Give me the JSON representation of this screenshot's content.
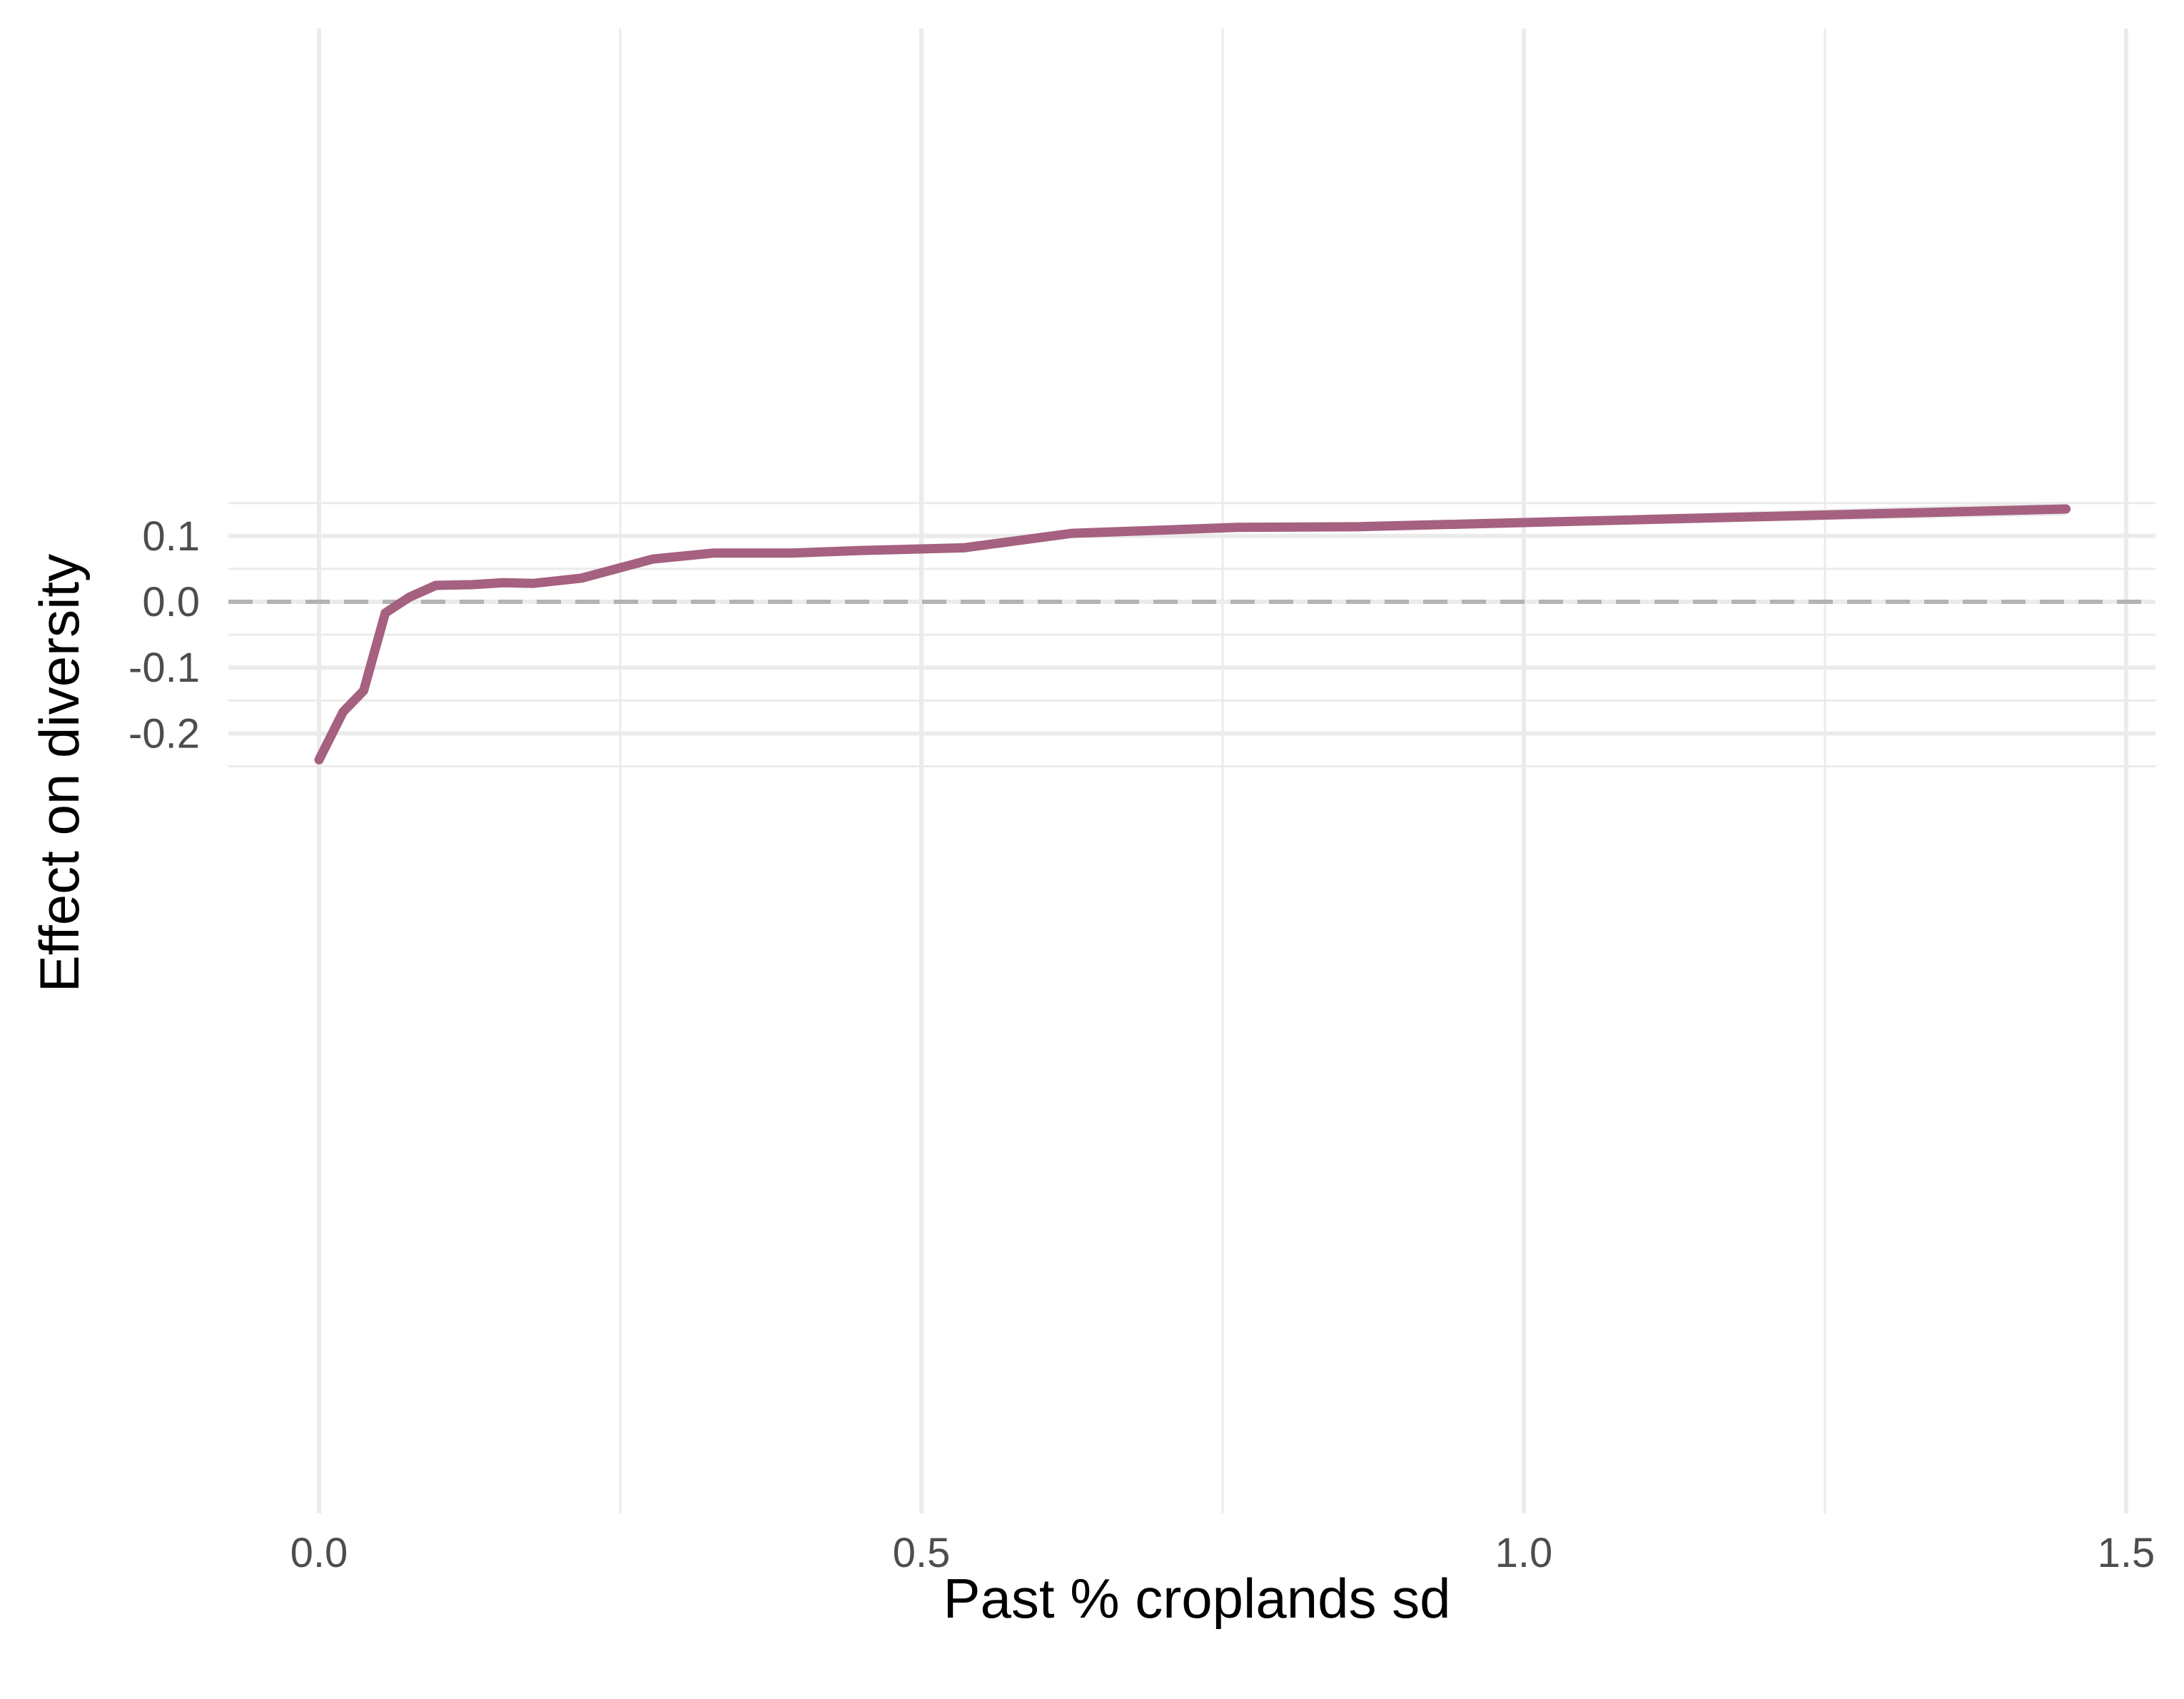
{
  "chart_data": {
    "type": "line",
    "title": "",
    "xlabel": "Past % croplands sd",
    "ylabel": "Effect on diversity",
    "xlim": [
      -0.15,
      1.53
    ],
    "ylim": [
      -0.275,
      0.16
    ],
    "x_ticks": [
      0.0,
      0.5,
      1.0,
      1.5
    ],
    "x_tick_labels": [
      "0.0",
      "0.5",
      "1.0",
      "1.5"
    ],
    "y_ticks": [
      -0.2,
      -0.1,
      0.0,
      0.1
    ],
    "y_tick_labels": [
      "-0.2",
      "-0.1",
      "0.0",
      "0.1"
    ],
    "grid": true,
    "reference_line": {
      "y": 0.0,
      "style": "dashed",
      "color": "#b3b3b3"
    },
    "series": [
      {
        "color": "#a5617f",
        "band_color": "#ebebeb",
        "points": [
          {
            "x": 0.0,
            "y": -0.24,
            "lo": -0.258,
            "hi": -0.226
          },
          {
            "x": 0.02,
            "y": -0.167,
            "lo": -0.172,
            "hi": -0.162
          },
          {
            "x": 0.037,
            "y": -0.135,
            "lo": -0.139,
            "hi": -0.131
          },
          {
            "x": 0.055,
            "y": -0.017,
            "lo": -0.02,
            "hi": -0.014
          },
          {
            "x": 0.075,
            "y": 0.007,
            "lo": 0.004,
            "hi": 0.01
          },
          {
            "x": 0.097,
            "y": 0.025,
            "lo": 0.021,
            "hi": 0.029
          },
          {
            "x": 0.127,
            "y": 0.026,
            "lo": 0.022,
            "hi": 0.03
          },
          {
            "x": 0.153,
            "y": 0.029,
            "lo": 0.025,
            "hi": 0.033
          },
          {
            "x": 0.178,
            "y": 0.028,
            "lo": 0.024,
            "hi": 0.032
          },
          {
            "x": 0.218,
            "y": 0.036,
            "lo": 0.032,
            "hi": 0.04
          },
          {
            "x": 0.277,
            "y": 0.065,
            "lo": 0.061,
            "hi": 0.069
          },
          {
            "x": 0.327,
            "y": 0.074,
            "lo": 0.07,
            "hi": 0.078
          },
          {
            "x": 0.392,
            "y": 0.074,
            "lo": 0.07,
            "hi": 0.078
          },
          {
            "x": 0.45,
            "y": 0.078,
            "lo": 0.074,
            "hi": 0.082
          },
          {
            "x": 0.535,
            "y": 0.082,
            "lo": 0.078,
            "hi": 0.086
          },
          {
            "x": 0.625,
            "y": 0.104,
            "lo": 0.1,
            "hi": 0.109
          },
          {
            "x": 0.762,
            "y": 0.113,
            "lo": 0.109,
            "hi": 0.118
          },
          {
            "x": 0.86,
            "y": 0.114,
            "lo": 0.109,
            "hi": 0.119
          },
          {
            "x": 1.45,
            "y": 0.141,
            "lo": 0.131,
            "hi": 0.152
          }
        ]
      }
    ]
  }
}
